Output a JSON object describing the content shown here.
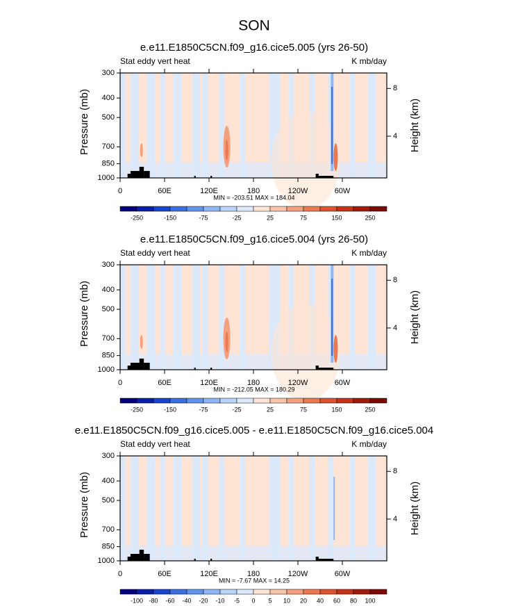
{
  "title": "SON",
  "chart_data": [
    {
      "type": "contour",
      "title": "e.e11.E1850C5CN.f09_g16.cice5.005 (yrs 26-50)",
      "left_label": "Stat eddy vert heat",
      "right_label": "K mb/day",
      "y_label": "Pressure (mb)",
      "y2_label": "Height (km)",
      "stats": "MIN = -203.51  MAX = 184.04",
      "xlim": [
        0,
        360
      ],
      "xticks": [
        0,
        {
          "value": 60,
          "label": "60E"
        },
        {
          "value": 120,
          "label": "120E"
        },
        180,
        {
          "value": 240,
          "label": "120W"
        },
        {
          "value": 300,
          "label": "60W"
        }
      ],
      "ylim": [
        1000,
        300
      ],
      "ylog": true,
      "yticks": [
        300,
        400,
        500,
        700,
        850,
        1000
      ],
      "y2lim": [
        0.5,
        9.3
      ],
      "y2ticks": [
        4,
        8
      ],
      "colorbar": {
        "colors": [
          "#03007a",
          "#0a1fa8",
          "#1843cc",
          "#3b6fe0",
          "#6394ec",
          "#8fb6f4",
          "#b8d4f8",
          "#dce9fb",
          "#fde4d4",
          "#f9c4a8",
          "#f4a07e",
          "#ec7852",
          "#dd5230",
          "#c43218",
          "#a01a0a",
          "#7a0a05"
        ],
        "ticks": [
          -250,
          -150,
          -75,
          -25,
          25,
          75,
          150,
          250
        ]
      }
    },
    {
      "type": "contour",
      "title": "e.e11.E1850C5CN.f09_g16.cice5.004 (yrs 26-50)",
      "left_label": "Stat eddy vert heat",
      "right_label": "K mb/day",
      "y_label": "Pressure (mb)",
      "y2_label": "Height (km)",
      "stats": "MIN = -212.05  MAX = 180.29",
      "xlim": [
        0,
        360
      ],
      "xticks": [
        0,
        {
          "value": 60,
          "label": "60E"
        },
        {
          "value": 120,
          "label": "120E"
        },
        180,
        {
          "value": 240,
          "label": "120W"
        },
        {
          "value": 300,
          "label": "60W"
        }
      ],
      "ylim": [
        1000,
        300
      ],
      "ylog": true,
      "yticks": [
        300,
        400,
        500,
        700,
        850,
        1000
      ],
      "y2lim": [
        0.5,
        9.3
      ],
      "y2ticks": [
        4,
        8
      ],
      "colorbar": {
        "colors": [
          "#03007a",
          "#0a1fa8",
          "#1843cc",
          "#3b6fe0",
          "#6394ec",
          "#8fb6f4",
          "#b8d4f8",
          "#dce9fb",
          "#fde4d4",
          "#f9c4a8",
          "#f4a07e",
          "#ec7852",
          "#dd5230",
          "#c43218",
          "#a01a0a",
          "#7a0a05"
        ],
        "ticks": [
          -250,
          -150,
          -75,
          -25,
          25,
          75,
          150,
          250
        ]
      }
    },
    {
      "type": "contour",
      "title": "e.e11.E1850C5CN.f09_g16.cice5.005 - e.e11.E1850C5CN.f09_g16.cice5.004",
      "left_label": "Stat eddy vert heat",
      "right_label": "K mb/day",
      "y_label": "Pressure (mb)",
      "y2_label": "Height (km)",
      "stats": "MIN = -7.67  MAX = 14.25",
      "xlim": [
        0,
        360
      ],
      "xticks": [
        0,
        {
          "value": 60,
          "label": "60E"
        },
        {
          "value": 120,
          "label": "120E"
        },
        180,
        {
          "value": 240,
          "label": "120W"
        },
        {
          "value": 300,
          "label": "60W"
        }
      ],
      "ylim": [
        1000,
        300
      ],
      "ylog": true,
      "yticks": [
        300,
        400,
        500,
        700,
        850,
        1000
      ],
      "y2lim": [
        0.5,
        9.3
      ],
      "y2ticks": [
        4,
        8
      ],
      "colorbar": {
        "colors": [
          "#03007a",
          "#0a1fa8",
          "#1843cc",
          "#3b6fe0",
          "#6394ec",
          "#8fb6f4",
          "#b8d4f8",
          "#dce9fb",
          "#fde4d4",
          "#f9c4a8",
          "#f4a07e",
          "#ec7852",
          "#dd5230",
          "#c43218",
          "#a01a0a",
          "#7a0a05"
        ],
        "ticks": [
          -100,
          -80,
          -60,
          -40,
          -20,
          -10,
          -5,
          0,
          5,
          10,
          20,
          40,
          60,
          80,
          100
        ]
      }
    }
  ]
}
